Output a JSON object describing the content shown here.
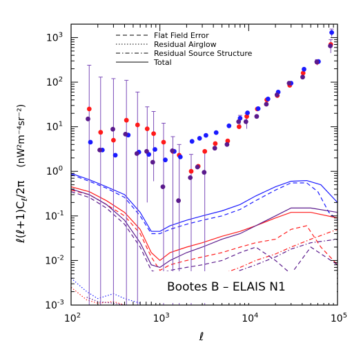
{
  "chart_data": {
    "type": "scatter",
    "annotation": "Bootes B – ELAIS N1",
    "xlabel": "ℓ",
    "ylabel_main": "ℓ(ℓ+1)C",
    "ylabel_sub": "ℓ",
    "ylabel_tail": "/2π",
    "ylabel_units": "(nW²m⁻⁴sr⁻²)",
    "xscale": "log",
    "yscale": "log",
    "xlim": [
      100,
      100000
    ],
    "ylim": [
      0.001,
      2000
    ],
    "x_ticks": [
      {
        "value": 100,
        "label": "10",
        "exp": "2"
      },
      {
        "value": 1000,
        "label": "10",
        "exp": "3"
      },
      {
        "value": 10000,
        "label": "10",
        "exp": "4"
      },
      {
        "value": 100000,
        "label": "10",
        "exp": "5"
      }
    ],
    "y_ticks": [
      {
        "value": 0.001,
        "label": "10",
        "exp": "-3"
      },
      {
        "value": 0.01,
        "label": "10",
        "exp": "-2"
      },
      {
        "value": 0.1,
        "label": "10",
        "exp": "-1"
      },
      {
        "value": 1,
        "label": "10",
        "exp": "0"
      },
      {
        "value": 10,
        "label": "10",
        "exp": "1"
      },
      {
        "value": 100,
        "label": "10",
        "exp": "2"
      },
      {
        "value": 1000,
        "label": "10",
        "exp": "3"
      }
    ],
    "legend": [
      {
        "label": "Flat Field Error",
        "dash": "dashed"
      },
      {
        "label": "Residual Airglow",
        "dash": "dotted"
      },
      {
        "label": "Residual Source Structure",
        "dash": "dashdot"
      },
      {
        "label": "Total",
        "dash": "solid"
      }
    ],
    "legend_position": "top-center",
    "colors": {
      "blue": "#1a1aff",
      "red": "#ff1a1a",
      "purple": "#5a1a8c",
      "errbar": "#7a4ab8"
    },
    "points": [
      {
        "color": "#ff1a1a",
        "x": [
          160,
          215,
          300,
          420,
          560,
          720,
          850,
          1100,
          1400,
          1650,
          2250,
          2700,
          3200,
          4200,
          5800,
          7800,
          9500,
          12500,
          16000,
          21000,
          29000,
          41000,
          59000,
          84000
        ],
        "y": [
          25,
          7.5,
          5,
          14,
          11,
          9,
          7,
          4.5,
          2.8,
          2.3,
          1.0,
          1.3,
          2.8,
          4.2,
          4.8,
          10,
          17,
          25,
          40,
          50,
          85,
          160,
          280,
          700
        ]
      },
      {
        "color": "#1a1aff",
        "x": [
          165,
          225,
          315,
          440,
          580,
          750,
          880,
          1150,
          1450,
          1700,
          2300,
          2800,
          3300,
          4300,
          6000,
          8000,
          9700,
          12800,
          16500,
          21500,
          30000,
          42000,
          61000,
          86000
        ],
        "y": [
          4.5,
          3.0,
          2.3,
          6.5,
          2.7,
          2.4,
          3.1,
          1.8,
          2.8,
          2.1,
          4.7,
          5.5,
          6.4,
          7.4,
          10.5,
          15.5,
          20.5,
          25.5,
          42,
          60,
          95,
          195,
          290,
          1300
        ]
      },
      {
        "color": "#5a1a8c",
        "x": [
          155,
          210,
          295,
          410,
          550,
          710,
          830,
          1080,
          1380,
          1620,
          2200,
          2650,
          3150,
          4150,
          5700,
          7700,
          9300,
          12300,
          15800,
          20800,
          28500,
          40500,
          58500,
          83000
        ],
        "y": [
          15,
          3.0,
          8.8,
          6.8,
          2.5,
          2.8,
          1.6,
          0.45,
          2.9,
          0.22,
          0.72,
          1.25,
          0.95,
          3.3,
          4.0,
          13,
          13,
          17,
          32,
          52,
          95,
          130,
          285,
          650
        ]
      }
    ],
    "errorbars": [
      {
        "x": 160,
        "y_low": 0.001,
        "y_high": 240
      },
      {
        "x": 215,
        "y_low": 0.001,
        "y_high": 130
      },
      {
        "x": 300,
        "y_low": 0.001,
        "y_high": 120
      },
      {
        "x": 420,
        "y_low": 0.001,
        "y_high": 110
      },
      {
        "x": 560,
        "y_low": 0.001,
        "y_high": 60
      },
      {
        "x": 720,
        "y_low": 0.2,
        "y_high": 28
      },
      {
        "x": 850,
        "y_low": 0.6,
        "y_high": 22
      },
      {
        "x": 1100,
        "y_low": 0.001,
        "y_high": 12
      },
      {
        "x": 1400,
        "y_low": 0.001,
        "y_high": 6
      },
      {
        "x": 1650,
        "y_low": 0.001,
        "y_high": 4
      },
      {
        "x": 2250,
        "y_low": 0.001,
        "y_high": 2.4
      },
      {
        "x": 3200,
        "y_low": 0.001,
        "y_high": 2.7
      },
      {
        "x": 8000,
        "y_low": 9,
        "y_high": 18
      },
      {
        "x": 9500,
        "y_low": 9,
        "y_high": 20
      },
      {
        "x": 59000,
        "y_low": 240,
        "y_high": 320
      },
      {
        "x": 84000,
        "y_low": 450,
        "y_high": 900
      },
      {
        "x": 86000,
        "y_low": 1050,
        "y_high": 1550
      }
    ],
    "curves": [
      {
        "color": "#1a1aff",
        "dash": "solid",
        "x": [
          100,
          160,
          250,
          400,
          600,
          800,
          1000,
          1300,
          2000,
          3000,
          5000,
          8000,
          12000,
          20000,
          30000,
          45000,
          65000,
          100000
        ],
        "y": [
          0.9,
          0.65,
          0.45,
          0.3,
          0.12,
          0.045,
          0.045,
          0.06,
          0.08,
          0.1,
          0.13,
          0.18,
          0.28,
          0.45,
          0.6,
          0.62,
          0.5,
          0.2
        ]
      },
      {
        "color": "#1a1aff",
        "dash": "dashed",
        "x": [
          100,
          160,
          250,
          400,
          600,
          800,
          1000,
          1300,
          2000,
          3000,
          5000,
          8000,
          12000,
          20000,
          30000,
          45000,
          60000,
          80000,
          100000
        ],
        "y": [
          0.85,
          0.6,
          0.42,
          0.26,
          0.1,
          0.04,
          0.04,
          0.05,
          0.065,
          0.08,
          0.1,
          0.14,
          0.22,
          0.38,
          0.55,
          0.55,
          0.35,
          0.12,
          0.08
        ]
      },
      {
        "color": "#ff1a1a",
        "dash": "solid",
        "x": [
          100,
          160,
          250,
          400,
          600,
          800,
          1000,
          1300,
          2000,
          3000,
          5000,
          8000,
          12000,
          20000,
          30000,
          50000,
          100000
        ],
        "y": [
          0.45,
          0.35,
          0.22,
          0.12,
          0.05,
          0.015,
          0.01,
          0.015,
          0.02,
          0.025,
          0.035,
          0.045,
          0.06,
          0.09,
          0.12,
          0.12,
          0.09
        ]
      },
      {
        "color": "#ff1a1a",
        "dash": "dashed",
        "x": [
          100,
          160,
          250,
          400,
          600,
          800,
          1000,
          1300,
          2000,
          3000,
          5000,
          8000,
          12000,
          20000,
          30000,
          45000,
          65000,
          100000
        ],
        "y": [
          0.38,
          0.3,
          0.18,
          0.1,
          0.04,
          0.012,
          0.006,
          0.008,
          0.01,
          0.012,
          0.015,
          0.02,
          0.025,
          0.03,
          0.05,
          0.06,
          0.02,
          0.008
        ]
      },
      {
        "color": "#ff1a1a",
        "dash": "dashdot",
        "x": [
          1000,
          2000,
          3000,
          5000,
          8000,
          12000,
          20000,
          30000,
          50000,
          100000
        ],
        "y": [
          0.002,
          0.003,
          0.004,
          0.005,
          0.007,
          0.01,
          0.014,
          0.02,
          0.03,
          0.05
        ]
      },
      {
        "color": "#5a1a8c",
        "dash": "solid",
        "x": [
          100,
          160,
          250,
          400,
          600,
          800,
          1000,
          1300,
          2000,
          3000,
          5000,
          8000,
          12000,
          20000,
          30000,
          50000,
          100000
        ],
        "y": [
          0.4,
          0.3,
          0.18,
          0.08,
          0.025,
          0.008,
          0.007,
          0.01,
          0.015,
          0.02,
          0.03,
          0.04,
          0.06,
          0.1,
          0.15,
          0.15,
          0.12
        ]
      },
      {
        "color": "#5a1a8c",
        "dash": "dashed",
        "x": [
          100,
          160,
          250,
          400,
          600,
          800,
          1000,
          1300,
          2000,
          3000,
          5000,
          8000,
          12000,
          20000,
          30000,
          50000,
          100000
        ],
        "y": [
          0.35,
          0.26,
          0.15,
          0.065,
          0.02,
          0.006,
          0.005,
          0.006,
          0.007,
          0.008,
          0.01,
          0.015,
          0.02,
          0.01,
          0.005,
          0.02,
          0.008
        ]
      },
      {
        "color": "#5a1a8c",
        "dash": "dashdot",
        "x": [
          1000,
          2000,
          3000,
          5000,
          8000,
          12000,
          20000,
          30000,
          50000,
          100000
        ],
        "y": [
          0.0015,
          0.0025,
          0.003,
          0.004,
          0.006,
          0.008,
          0.012,
          0.018,
          0.025,
          0.03
        ]
      },
      {
        "color": "#1a1aff",
        "dash": "dotted",
        "x": [
          100,
          150,
          200,
          300,
          400,
          600
        ],
        "y": [
          0.004,
          0.002,
          0.0014,
          0.0018,
          0.0014,
          0.0011
        ]
      },
      {
        "color": "#ff1a1a",
        "dash": "dotted",
        "x": [
          100,
          150,
          200,
          300,
          400
        ],
        "y": [
          0.0025,
          0.0013,
          0.0011,
          0.0012,
          0.001
        ]
      },
      {
        "color": "#5a1a8c",
        "dash": "dotted",
        "x": [
          150,
          200,
          300,
          400
        ],
        "y": [
          0.0015,
          0.0012,
          0.0011,
          0.001
        ]
      }
    ]
  }
}
